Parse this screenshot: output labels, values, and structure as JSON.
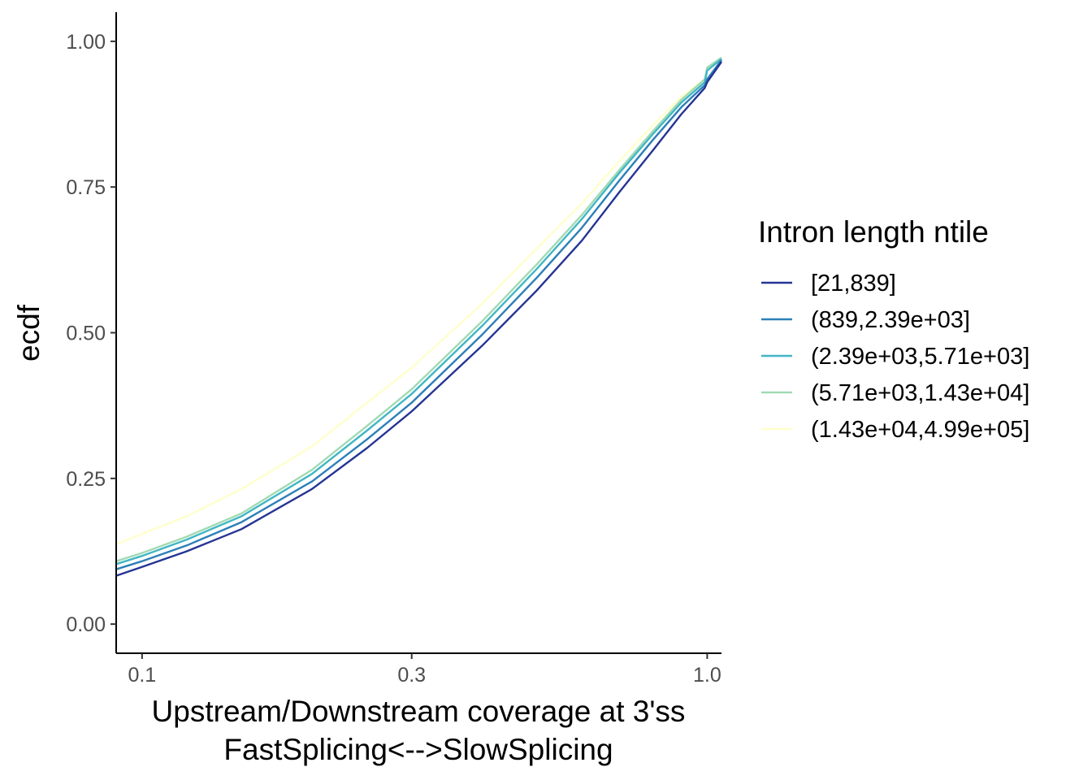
{
  "chart_data": {
    "type": "line",
    "xscale": "log",
    "xlabel_line1": "Upstream/Downstream coverage at 3'ss",
    "xlabel_line2": "FastSplicing<-->SlowSplicing",
    "ylabel": "ecdf",
    "xlim": [
      0.09,
      1.06
    ],
    "ylim": [
      -0.05,
      1.05
    ],
    "xticks": [
      {
        "value": 0.1,
        "label": "0.1"
      },
      {
        "value": 0.3,
        "label": "0.3"
      },
      {
        "value": 1.0,
        "label": "1.0"
      }
    ],
    "yticks": [
      {
        "value": 0.0,
        "label": "0.00"
      },
      {
        "value": 0.25,
        "label": "0.25"
      },
      {
        "value": 0.5,
        "label": "0.50"
      },
      {
        "value": 0.75,
        "label": "0.75"
      },
      {
        "value": 1.0,
        "label": "1.00"
      }
    ],
    "grid": false,
    "legend_position": "right",
    "legend_title": "Intron length ntile",
    "series": [
      {
        "name": "[21,839]",
        "color": "#253494",
        "x": [
          0.09,
          0.1,
          0.12,
          0.15,
          0.2,
          0.25,
          0.3,
          0.4,
          0.5,
          0.6,
          0.7,
          0.8,
          0.9,
          0.99,
          1.0,
          1.06
        ],
        "y": [
          0.083,
          0.098,
          0.125,
          0.163,
          0.232,
          0.302,
          0.365,
          0.478,
          0.573,
          0.658,
          0.742,
          0.812,
          0.875,
          0.92,
          0.93,
          0.965
        ]
      },
      {
        "name": "(839,2.39e+03]",
        "color": "#2c7fb8",
        "x": [
          0.09,
          0.1,
          0.12,
          0.15,
          0.2,
          0.25,
          0.3,
          0.4,
          0.5,
          0.6,
          0.7,
          0.8,
          0.9,
          0.99,
          1.0,
          1.06
        ],
        "y": [
          0.094,
          0.108,
          0.135,
          0.175,
          0.245,
          0.317,
          0.38,
          0.497,
          0.595,
          0.68,
          0.762,
          0.83,
          0.887,
          0.925,
          0.935,
          0.968
        ]
      },
      {
        "name": "(2.39e+03,5.71e+03]",
        "color": "#41b6c4",
        "x": [
          0.09,
          0.1,
          0.12,
          0.15,
          0.2,
          0.25,
          0.3,
          0.4,
          0.5,
          0.6,
          0.7,
          0.8,
          0.9,
          0.99,
          1.0,
          1.06
        ],
        "y": [
          0.103,
          0.117,
          0.145,
          0.185,
          0.258,
          0.332,
          0.395,
          0.512,
          0.61,
          0.695,
          0.775,
          0.84,
          0.895,
          0.93,
          0.95,
          0.97
        ]
      },
      {
        "name": "(5.71e+03,1.43e+04]",
        "color": "#a1dab4",
        "x": [
          0.09,
          0.1,
          0.12,
          0.15,
          0.2,
          0.25,
          0.3,
          0.4,
          0.5,
          0.6,
          0.7,
          0.8,
          0.9,
          0.99,
          1.0,
          1.06
        ],
        "y": [
          0.108,
          0.122,
          0.15,
          0.19,
          0.265,
          0.34,
          0.403,
          0.52,
          0.618,
          0.702,
          0.78,
          0.845,
          0.9,
          0.935,
          0.955,
          0.972
        ]
      },
      {
        "name": "(1.43e+04,4.99e+05]",
        "color": "#ffffcc",
        "x": [
          0.09,
          0.1,
          0.12,
          0.15,
          0.2,
          0.25,
          0.3,
          0.4,
          0.5,
          0.6,
          0.7,
          0.8,
          0.9,
          0.99,
          1.0,
          1.06
        ],
        "y": [
          0.137,
          0.155,
          0.185,
          0.232,
          0.305,
          0.38,
          0.44,
          0.55,
          0.645,
          0.722,
          0.795,
          0.855,
          0.905,
          0.935,
          0.955,
          0.972
        ]
      }
    ]
  }
}
